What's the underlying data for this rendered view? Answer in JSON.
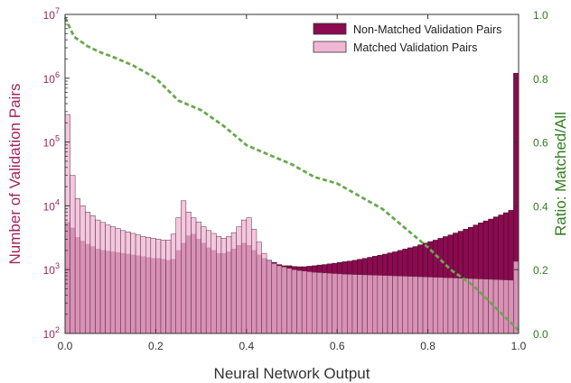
{
  "chart_data": {
    "type": "bar",
    "xlabel": "Neural Network Output",
    "ylabel_left": "Number of Validation Pairs",
    "ylabel_right": "Ratio: Matched/All",
    "x_ticks": [
      "0.0",
      "0.2",
      "0.4",
      "0.6",
      "0.8",
      "1.0"
    ],
    "left_ticks": [
      {
        "base": "10",
        "exp": "2"
      },
      {
        "base": "10",
        "exp": "3"
      },
      {
        "base": "10",
        "exp": "4"
      },
      {
        "base": "10",
        "exp": "5"
      },
      {
        "base": "10",
        "exp": "6"
      },
      {
        "base": "10",
        "exp": "7"
      }
    ],
    "right_ticks": [
      "0.0",
      "0.2",
      "0.4",
      "0.6",
      "0.8",
      "1.0"
    ],
    "xlim": [
      0,
      1
    ],
    "ylim_left": [
      100,
      10000000
    ],
    "ylim_right": [
      0,
      1
    ],
    "log_scale_left": true,
    "grid": false,
    "legend_position": "top-right",
    "colors": {
      "non_matched": "#8b0a50",
      "matched": "#f0b7d4",
      "overlap": "#d687b1",
      "ratio": "#6aa84f",
      "left_axis": "#a0245e",
      "right_axis": "#2e7d1e"
    },
    "series": [
      {
        "name": "Non-Matched Validation Pairs",
        "values": [
          5500,
          4500,
          3200,
          2800,
          2500,
          2300,
          2100,
          2000,
          1950,
          1900,
          1850,
          1800,
          1750,
          1700,
          1650,
          1600,
          1550,
          1500,
          1500,
          1450,
          1400,
          1450,
          2000,
          2600,
          3400,
          3600,
          3000,
          2600,
          2200,
          2000,
          1800,
          1800,
          1900,
          2100,
          2400,
          2600,
          2400,
          2000,
          1700,
          1500,
          1400,
          1300,
          1200,
          1150,
          1150,
          1120,
          1110,
          1110,
          1130,
          1150,
          1180,
          1200,
          1230,
          1260,
          1300,
          1330,
          1360,
          1400,
          1450,
          1500,
          1560,
          1620,
          1680,
          1750,
          1830,
          1900,
          2000,
          2100,
          2200,
          2300,
          2450,
          2600,
          2750,
          2900,
          3100,
          3300,
          3500,
          3750,
          4000,
          4300,
          4600,
          5000,
          5400,
          5800,
          6200,
          6700,
          7200,
          7800,
          8500,
          1200000
        ]
      },
      {
        "name": "Matched Validation Pairs",
        "values": [
          270000,
          30000,
          13000,
          10000,
          8000,
          7000,
          6000,
          5500,
          5000,
          4700,
          4400,
          4100,
          3900,
          3700,
          3500,
          3300,
          3200,
          3100,
          3000,
          2900,
          2900,
          3600,
          6500,
          12000,
          8000,
          6500,
          5600,
          4700,
          4100,
          3700,
          3300,
          3100,
          3300,
          3800,
          4700,
          6000,
          6500,
          4300,
          2700,
          1800,
          1400,
          1250,
          1150,
          1100,
          1050,
          1000,
          970,
          950,
          930,
          910,
          900,
          890,
          880,
          870,
          860,
          850,
          845,
          840,
          835,
          830,
          825,
          820,
          815,
          810,
          805,
          800,
          795,
          790,
          785,
          780,
          775,
          770,
          765,
          760,
          755,
          750,
          745,
          740,
          735,
          730,
          725,
          720,
          715,
          710,
          705,
          700,
          695,
          690,
          685,
          1350
        ]
      }
    ],
    "ratio_series": {
      "x": [
        0.0,
        0.02,
        0.05,
        0.08,
        0.1,
        0.15,
        0.2,
        0.25,
        0.3,
        0.35,
        0.4,
        0.45,
        0.5,
        0.55,
        0.6,
        0.65,
        0.7,
        0.75,
        0.8,
        0.85,
        0.9,
        0.95,
        1.0
      ],
      "y": [
        0.99,
        0.93,
        0.9,
        0.88,
        0.87,
        0.84,
        0.8,
        0.73,
        0.7,
        0.65,
        0.59,
        0.56,
        0.53,
        0.49,
        0.47,
        0.43,
        0.39,
        0.33,
        0.27,
        0.2,
        0.15,
        0.08,
        0.01
      ]
    }
  }
}
